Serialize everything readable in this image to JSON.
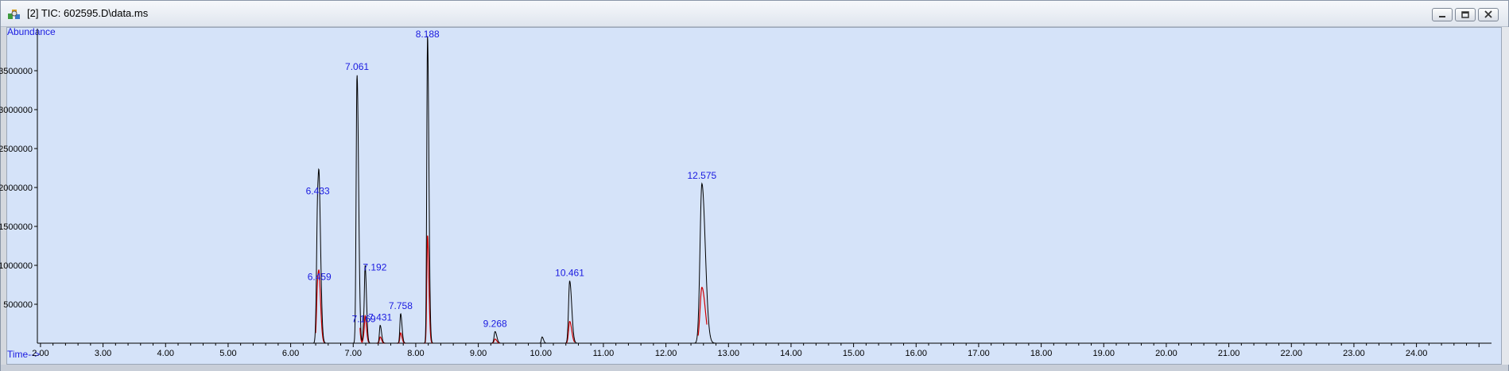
{
  "window": {
    "title": "[2] TIC: 602595.D\\data.ms",
    "icon": "chromatogram-app-icon",
    "buttons": [
      "minimize",
      "restore",
      "close"
    ]
  },
  "chart_data": {
    "type": "line",
    "ylabel": "Abundance",
    "xlabel": "Time-->",
    "xlim": [
      1.95,
      25.2
    ],
    "ylim": [
      0,
      4000000
    ],
    "x_ticks": [
      2,
      3,
      4,
      5,
      6,
      7,
      8,
      9,
      10,
      11,
      12,
      13,
      14,
      15,
      16,
      17,
      18,
      19,
      20,
      21,
      22,
      23,
      24
    ],
    "x_tick_labels": [
      "2.00",
      "3.00",
      "4.00",
      "5.00",
      "6.00",
      "7.00",
      "8.00",
      "9.00",
      "10.00",
      "11.00",
      "12.00",
      "13.00",
      "14.00",
      "15.00",
      "16.00",
      "17.00",
      "18.00",
      "19.00",
      "20.00",
      "21.00",
      "22.00",
      "23.00",
      "24.00"
    ],
    "y_ticks": [
      500000,
      1000000,
      1500000,
      2000000,
      2500000,
      3000000,
      3500000
    ],
    "y_tick_labels": [
      "500000",
      "1000000",
      "1500000",
      "2000000",
      "2500000",
      "3000000",
      "3500000"
    ],
    "colors": {
      "trace": "#000000",
      "integration": "#cc0000",
      "labels": "#1a1ae0",
      "background": "#d5e3f9"
    },
    "series": [
      {
        "peaks": [
          {
            "rt": 6.433,
            "height": 1850000,
            "width": 0.018
          },
          {
            "rt": 6.459,
            "height": 750000,
            "width": 0.015
          },
          {
            "rt": 7.061,
            "height": 3450000,
            "width": 0.014
          },
          {
            "rt": 7.169,
            "height": 230000,
            "width": 0.012
          },
          {
            "rt": 7.192,
            "height": 870000,
            "width": 0.012
          },
          {
            "rt": 7.431,
            "height": 230000,
            "width": 0.012
          },
          {
            "rt": 7.758,
            "height": 380000,
            "width": 0.012
          },
          {
            "rt": 8.188,
            "height": 3950000,
            "width": 0.012
          },
          {
            "rt": 9.268,
            "height": 150000,
            "width": 0.015
          },
          {
            "rt": 10.02,
            "height": 80000,
            "width": 0.012
          },
          {
            "rt": 10.461,
            "height": 800000,
            "width": 0.018
          },
          {
            "rt": 12.575,
            "height": 2050000,
            "width": 0.03
          }
        ]
      }
    ],
    "peak_labels": [
      {
        "text": "6.433",
        "rt": 6.433,
        "y": 1850000
      },
      {
        "text": "6.459",
        "rt": 6.459,
        "y": 750000
      },
      {
        "text": "7.061",
        "rt": 7.061,
        "y": 3450000
      },
      {
        "text": "7.169",
        "rt": 7.169,
        "y": 230000
      },
      {
        "text": "7.192",
        "rt": 7.192,
        "y": 870000
      },
      {
        "text": "7.431",
        "rt": 7.431,
        "y": 230000
      },
      {
        "text": "7.758",
        "rt": 7.758,
        "y": 380000
      },
      {
        "text": "8.188",
        "rt": 8.188,
        "y": 3950000
      },
      {
        "text": "9.268",
        "rt": 9.268,
        "y": 150000
      },
      {
        "text": "10.461",
        "rt": 10.461,
        "y": 800000
      },
      {
        "text": "12.575",
        "rt": 12.575,
        "y": 2050000
      }
    ]
  }
}
